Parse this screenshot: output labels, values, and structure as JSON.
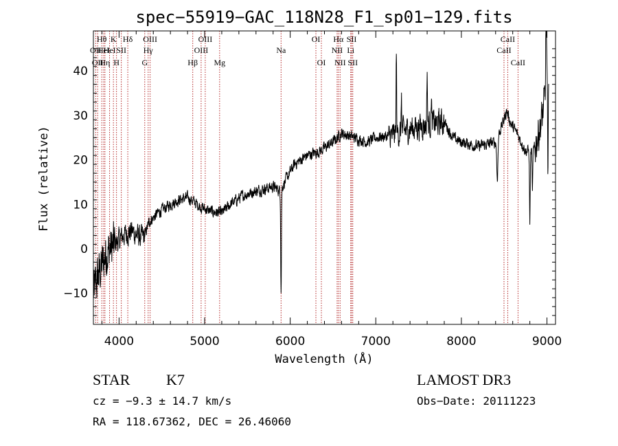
{
  "chart_data": {
    "type": "line",
    "title": "spec−55919−GAC_118N28_F1_sp01−129.fits",
    "xlabel": "Wavelength (Å)",
    "ylabel": "Flux (relative)",
    "xlim": [
      3700,
      9100
    ],
    "ylim": [
      -17,
      49
    ],
    "x_ticks": [
      {
        "value": 4000,
        "label": "4000"
      },
      {
        "value": 5000,
        "label": "5000"
      },
      {
        "value": 6000,
        "label": "6000"
      },
      {
        "value": 7000,
        "label": "7000"
      },
      {
        "value": 8000,
        "label": "8000"
      },
      {
        "value": 9000,
        "label": "9000"
      }
    ],
    "y_ticks": [
      {
        "value": -10,
        "label": "−10"
      },
      {
        "value": 0,
        "label": "0"
      },
      {
        "value": 10,
        "label": "10"
      },
      {
        "value": 20,
        "label": "20"
      },
      {
        "value": 30,
        "label": "30"
      },
      {
        "value": 40,
        "label": "40"
      }
    ],
    "spectral_lines": [
      {
        "wavelength": 3727,
        "label": "OII",
        "row": 2
      },
      {
        "wavelength": 3750,
        "label": "OII",
        "row": 3
      },
      {
        "wavelength": 3798,
        "label": "Hθ",
        "row": 1
      },
      {
        "wavelength": 3820,
        "label": "HeI",
        "row": 2
      },
      {
        "wavelength": 3835,
        "label": "Hη",
        "row": 3
      },
      {
        "wavelength": 3889,
        "label": "HeI",
        "row": 2
      },
      {
        "wavelength": 3934,
        "label": "K",
        "row": 1
      },
      {
        "wavelength": 3970,
        "label": "H",
        "row": 3
      },
      {
        "wavelength": 4026,
        "label": "SII",
        "row": 2
      },
      {
        "wavelength": 4102,
        "label": "Hδ",
        "row": 1
      },
      {
        "wavelength": 4300,
        "label": "G",
        "row": 3
      },
      {
        "wavelength": 4340,
        "label": "Hγ",
        "row": 2
      },
      {
        "wavelength": 4363,
        "label": "OIII",
        "row": 1
      },
      {
        "wavelength": 4861,
        "label": "Hβ",
        "row": 3
      },
      {
        "wavelength": 4959,
        "label": "OIII",
        "row": 2
      },
      {
        "wavelength": 5007,
        "label": "OIII",
        "row": 1
      },
      {
        "wavelength": 5175,
        "label": "Mg",
        "row": 3
      },
      {
        "wavelength": 5893,
        "label": "Na",
        "row": 2
      },
      {
        "wavelength": 6300,
        "label": "OI",
        "row": 1
      },
      {
        "wavelength": 6364,
        "label": "OI",
        "row": 3
      },
      {
        "wavelength": 6548,
        "label": "NII",
        "row": 2
      },
      {
        "wavelength": 6563,
        "label": "Hα",
        "row": 1
      },
      {
        "wavelength": 6583,
        "label": "NII",
        "row": 3
      },
      {
        "wavelength": 6707,
        "label": "Li",
        "row": 2
      },
      {
        "wavelength": 6717,
        "label": "SII",
        "row": 1
      },
      {
        "wavelength": 6731,
        "label": "SII",
        "row": 3
      },
      {
        "wavelength": 8498,
        "label": "CaII",
        "row": 2
      },
      {
        "wavelength": 8542,
        "label": "CaII",
        "row": 1
      },
      {
        "wavelength": 8662,
        "label": "CaII",
        "row": 3
      }
    ],
    "continuum_nodes": [
      [
        3700,
        -10
      ],
      [
        3760,
        -6
      ],
      [
        3850,
        -1
      ],
      [
        3950,
        1
      ],
      [
        4050,
        3
      ],
      [
        4150,
        4
      ],
      [
        4250,
        2.5
      ],
      [
        4300,
        3
      ],
      [
        4350,
        6
      ],
      [
        4450,
        8
      ],
      [
        4600,
        10
      ],
      [
        4700,
        11
      ],
      [
        4800,
        11.5
      ],
      [
        4880,
        10.5
      ],
      [
        4950,
        9.5
      ],
      [
        5050,
        8.5
      ],
      [
        5200,
        8
      ],
      [
        5300,
        10
      ],
      [
        5450,
        12
      ],
      [
        5600,
        13
      ],
      [
        5800,
        14
      ],
      [
        5880,
        13
      ],
      [
        5950,
        15.5
      ],
      [
        6050,
        19
      ],
      [
        6200,
        21
      ],
      [
        6350,
        22
      ],
      [
        6500,
        24
      ],
      [
        6600,
        26
      ],
      [
        6750,
        25
      ],
      [
        6900,
        24
      ],
      [
        7000,
        25
      ],
      [
        7200,
        25.5
      ],
      [
        7400,
        27
      ],
      [
        7600,
        28
      ],
      [
        7800,
        28.5
      ],
      [
        7900,
        25
      ],
      [
        8000,
        24
      ],
      [
        8200,
        23
      ],
      [
        8400,
        24
      ],
      [
        8480,
        28
      ],
      [
        8530,
        31
      ],
      [
        8580,
        28
      ],
      [
        8650,
        26
      ],
      [
        8750,
        22
      ],
      [
        8850,
        22
      ],
      [
        8950,
        30
      ],
      [
        9000,
        38
      ]
    ],
    "features": [
      {
        "center": 5893,
        "width": 6,
        "depth": -23
      },
      {
        "center": 8420,
        "width": 10,
        "depth": -9
      },
      {
        "center": 8800,
        "width": 6,
        "depth": -16
      },
      {
        "center": 8830,
        "width": 5,
        "depth": -10
      },
      {
        "center": 7240,
        "width": 5,
        "depth": 18
      },
      {
        "center": 7300,
        "width": 4,
        "depth": 9
      },
      {
        "center": 7600,
        "width": 5,
        "depth": 12
      },
      {
        "center": 7650,
        "width": 4,
        "depth": 8
      },
      {
        "center": 8990,
        "width": 6,
        "depth": 18
      },
      {
        "center": 9010,
        "width": 5,
        "depth": -20
      }
    ]
  },
  "info": {
    "object_class": "STAR",
    "subclass": "K7",
    "survey": "LAMOST DR3",
    "redshift": "cz = −9.3 ± 14.7 km/s",
    "obs_date": "Obs−Date: 20111223",
    "coords": "RA = 118.67362, DEC =  26.46060"
  }
}
